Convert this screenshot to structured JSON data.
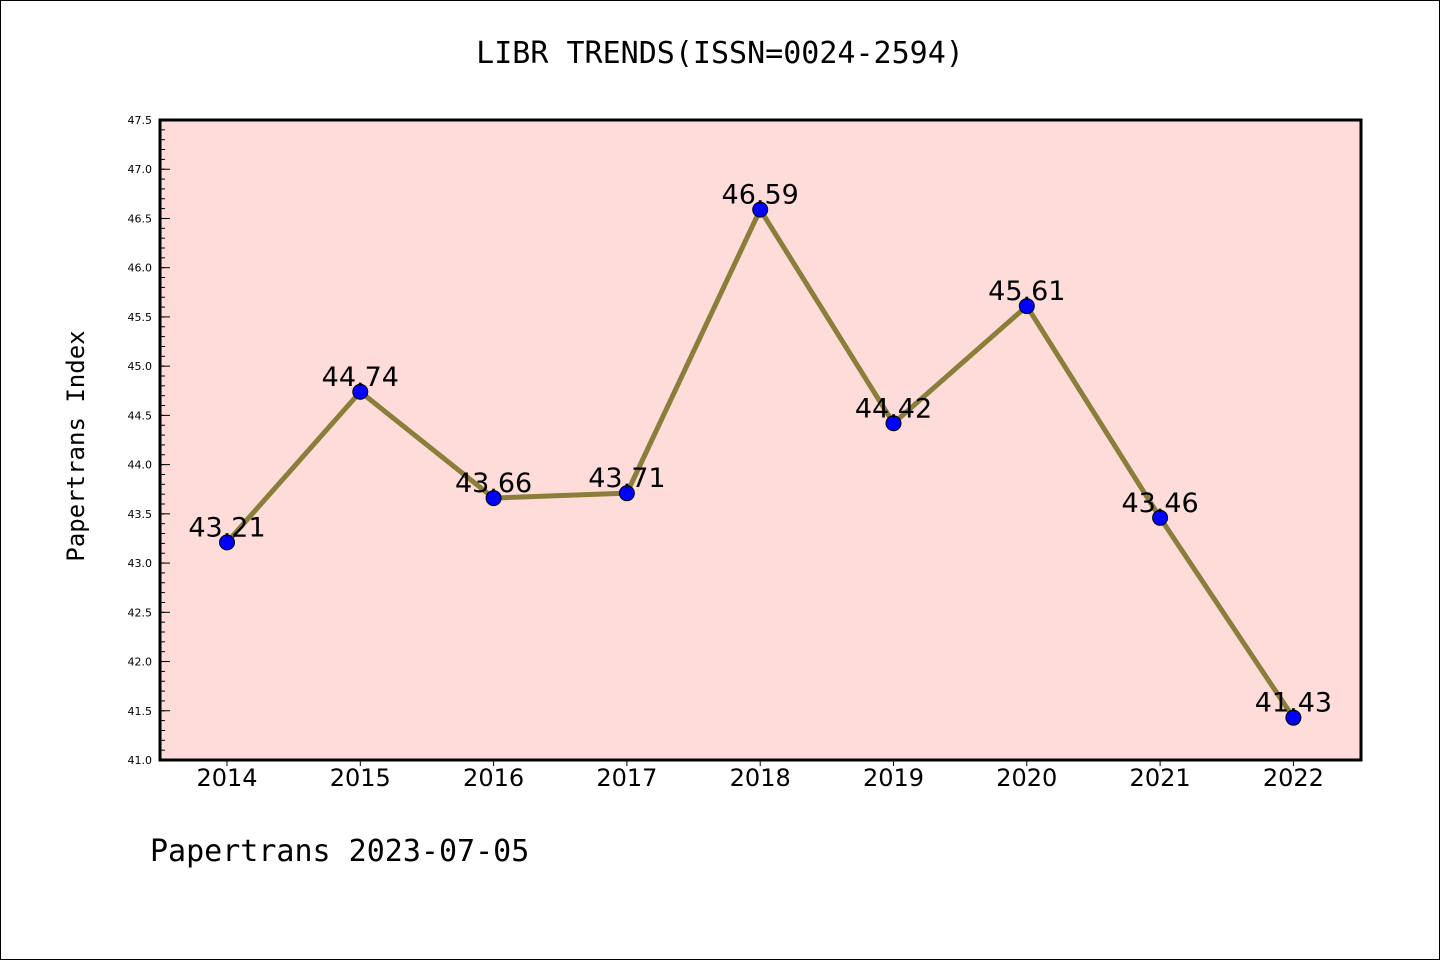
{
  "chart_data": {
    "type": "line",
    "title": "LIBR TRENDS(ISSN=0024-2594)",
    "xlabel": "",
    "ylabel": "Papertrans Index",
    "categories": [
      "2014",
      "2015",
      "2016",
      "2017",
      "2018",
      "2019",
      "2020",
      "2021",
      "2022"
    ],
    "values": [
      43.21,
      44.74,
      43.66,
      43.71,
      46.59,
      44.42,
      45.61,
      43.46,
      41.43
    ],
    "data_labels": [
      "43.21",
      "44.74",
      "43.66",
      "43.71",
      "46.59",
      "44.42",
      "45.61",
      "43.46",
      "41.43"
    ],
    "ylim": [
      41.0,
      47.5
    ],
    "yticks": [
      "41.0",
      "41.5",
      "42.0",
      "42.5",
      "43.0",
      "43.5",
      "44.0",
      "44.5",
      "45.0",
      "45.5",
      "46.0",
      "46.5",
      "47.0",
      "47.5"
    ],
    "grid": false,
    "legend": "none",
    "colors": {
      "plot_background": "#fddcda",
      "line": "#8b7d3a",
      "marker": "#0000ff"
    }
  },
  "footer": {
    "text": "Papertrans 2023-07-05"
  }
}
